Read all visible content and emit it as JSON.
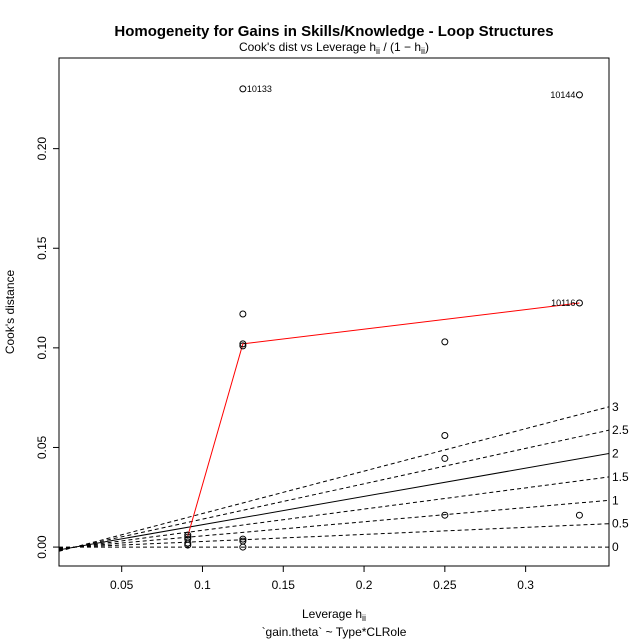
{
  "chart_data": {
    "type": "scatter",
    "title": "Homogeneity for Gains in Skills/Knowledge - Loop Structures",
    "subtitle_prefix": "Cook's dist vs Leverage  h",
    "subtitle_sub1": "ii",
    "subtitle_mid": " / (1 − h",
    "subtitle_sub2": "ii",
    "subtitle_suffix": ")",
    "xlabel": "Leverage  h",
    "xlabel_sub": "ii",
    "ylabel": "Cook's distance",
    "caption": "`gain.theta` ~ Type*CLRole",
    "xlim": [
      0.0112,
      0.3516
    ],
    "ylim": [
      -0.0095,
      0.2455
    ],
    "x_ticks": [
      0.05,
      0.1,
      0.15,
      0.2,
      0.25,
      0.3
    ],
    "x_tick_labels": [
      "0.05",
      "0.1",
      "0.15",
      "0.2",
      "0.25",
      "0.3"
    ],
    "y_ticks": [
      0.0,
      0.05,
      0.1,
      0.15,
      0.2
    ],
    "y_tick_labels": [
      "0.00",
      "0.05",
      "0.10",
      "0.15",
      "0.20"
    ],
    "points": [
      {
        "x": 0.0909,
        "y": 0.006
      },
      {
        "x": 0.0909,
        "y": 0.005
      },
      {
        "x": 0.0909,
        "y": 0.004
      },
      {
        "x": 0.0909,
        "y": 0.002
      },
      {
        "x": 0.0909,
        "y": 0.001
      },
      {
        "x": 0.125,
        "y": 0.117
      },
      {
        "x": 0.125,
        "y": 0.102
      },
      {
        "x": 0.125,
        "y": 0.101
      },
      {
        "x": 0.125,
        "y": 0.004
      },
      {
        "x": 0.125,
        "y": 0.003
      },
      {
        "x": 0.125,
        "y": 0.0
      },
      {
        "x": 0.125,
        "y": 0.23
      },
      {
        "x": 0.25,
        "y": 0.103
      },
      {
        "x": 0.25,
        "y": 0.056
      },
      {
        "x": 0.25,
        "y": 0.0445
      },
      {
        "x": 0.25,
        "y": 0.016
      },
      {
        "x": 0.3333,
        "y": 0.227
      },
      {
        "x": 0.3333,
        "y": 0.1225
      },
      {
        "x": 0.3333,
        "y": 0.016
      }
    ],
    "labeled_points": [
      {
        "x": 0.125,
        "y": 0.23,
        "label": "10133",
        "side": "right"
      },
      {
        "x": 0.3333,
        "y": 0.227,
        "label": "10144",
        "side": "left"
      },
      {
        "x": 0.3333,
        "y": 0.1225,
        "label": "10116",
        "side": "left"
      }
    ],
    "smoother": {
      "color": "#ff0000",
      "x": [
        0.0909,
        0.125,
        0.3333
      ],
      "y": [
        0.0055,
        0.102,
        0.1225
      ]
    },
    "contours": {
      "origin_x": 0.021,
      "origin_y": 0.0,
      "slope_per_label": 0.071,
      "levels": [
        {
          "label": "3",
          "value": 3,
          "style": "dashed"
        },
        {
          "label": "2.5",
          "value": 2.5,
          "style": "dashed"
        },
        {
          "label": "2",
          "value": 2,
          "style": "solid"
        },
        {
          "label": "1.5",
          "value": 1.5,
          "style": "dashed"
        },
        {
          "label": "1",
          "value": 1,
          "style": "dashed"
        },
        {
          "label": "0.5",
          "value": 0.5,
          "style": "dashed"
        },
        {
          "label": "0",
          "value": 0,
          "style": "dashed"
        }
      ]
    }
  }
}
